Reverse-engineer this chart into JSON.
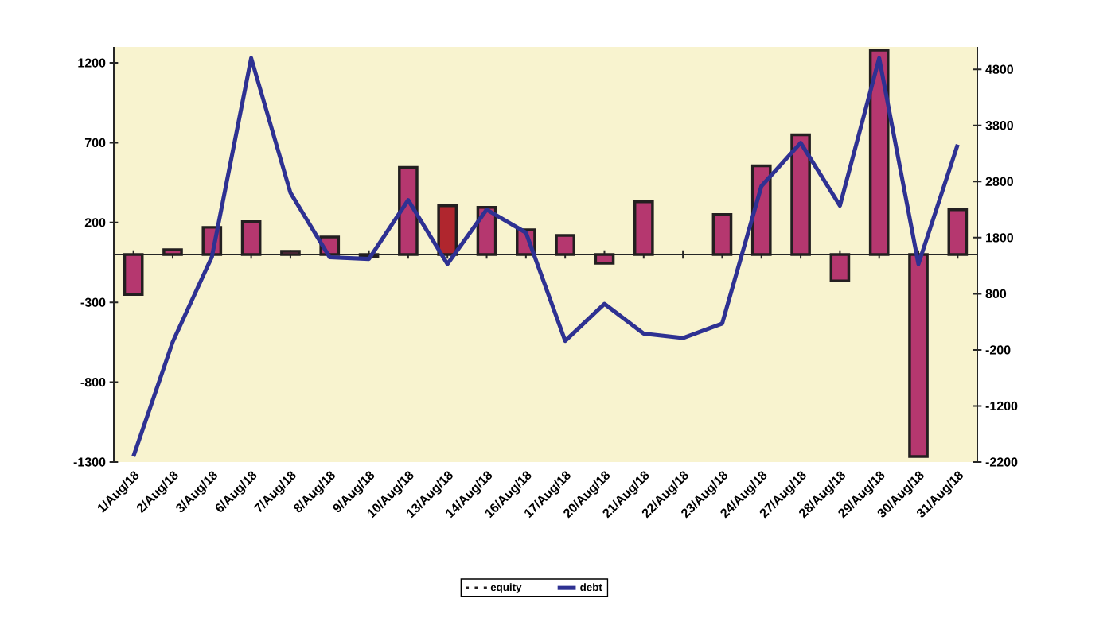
{
  "chart_data": {
    "type": "bar",
    "categories": [
      "1/Aug/18",
      "2/Aug/18",
      "3/Aug/18",
      "6/Aug/18",
      "7/Aug/18",
      "8/Aug/18",
      "9/Aug/18",
      "10/Aug/18",
      "13/Aug/18",
      "14/Aug/18",
      "16/Aug/18",
      "17/Aug/18",
      "20/Aug/18",
      "21/Aug/18",
      "22/Aug/18",
      "23/Aug/18",
      "24/Aug/18",
      "27/Aug/18",
      "28/Aug/18",
      "29/Aug/18",
      "30/Aug/18",
      "31/Aug/18"
    ],
    "series": [
      {
        "name": "equity",
        "color": "#b5376f",
        "colors": [
          "#b5376f",
          "#b5376f",
          "#b5376f",
          "#b5376f",
          "#b5376f",
          "#b5376f",
          "#b5376f",
          "#b5376f",
          "#b0262e",
          "#b5376f",
          "#b5376f",
          "#b5376f",
          "#b5376f",
          "#b5376f",
          "#b5376f",
          "#b5376f",
          "#b5376f",
          "#b5376f",
          "#b5376f",
          "#b5376f",
          "#b5376f",
          "#b5376f"
        ],
        "values": [
          -250,
          30,
          170,
          205,
          20,
          110,
          -15,
          545,
          305,
          295,
          155,
          120,
          -55,
          330,
          null,
          250,
          555,
          750,
          -165,
          1280,
          -1265,
          280
        ]
      },
      {
        "name": "debt",
        "type": "line",
        "axis": "y2",
        "color": "#2e3192",
        "values": [
          -2100,
          -60,
          1460,
          5000,
          2600,
          1450,
          1420,
          2470,
          1330,
          2300,
          1890,
          -40,
          620,
          90,
          10,
          270,
          2720,
          3490,
          2370,
          5000,
          1330,
          3460
        ]
      }
    ],
    "ylim": [
      -1300,
      1300
    ],
    "yticks": [
      -1300,
      -800,
      -300,
      200,
      700,
      1200
    ],
    "y2lim": [
      -2200,
      5200
    ],
    "y2ticks": [
      -2200,
      -1200,
      -200,
      800,
      1800,
      2800,
      3800,
      4800
    ],
    "legend": "bottom"
  }
}
